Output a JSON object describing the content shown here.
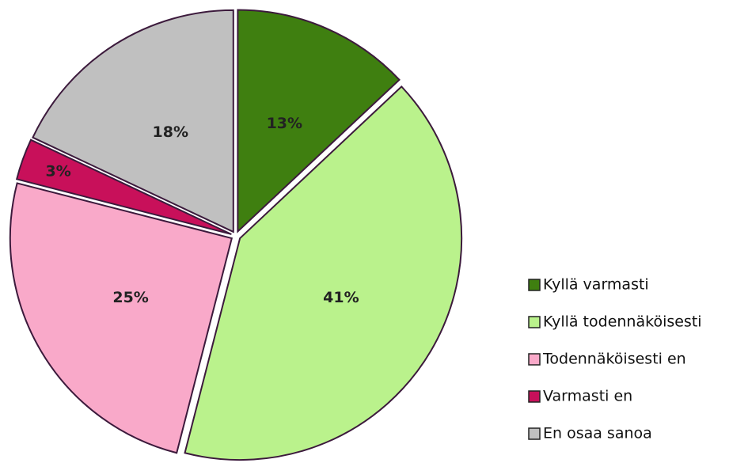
{
  "chart_data": {
    "type": "pie",
    "categories": [
      "Kyllä varmasti",
      "Kyllä todennäköisesti",
      "Todennäköisesti en",
      "Varmasti en",
      "En osaa sanoa"
    ],
    "values": [
      13,
      41,
      25,
      3,
      18
    ],
    "value_labels": [
      "13%",
      "41%",
      "25%",
      "3%",
      "18%"
    ],
    "colors": [
      "#3f7f10",
      "#baf28c",
      "#f9a9c9",
      "#c8105a",
      "#c0c0c0"
    ],
    "legend": "right"
  }
}
